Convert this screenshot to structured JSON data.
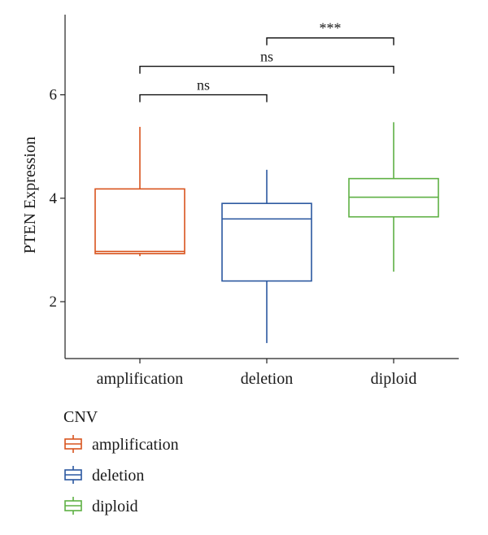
{
  "chart_data": {
    "type": "boxplot",
    "ylabel": "PTEN Expression",
    "xlabel": "",
    "ylim": [
      0.9,
      7.55
    ],
    "yticks": [
      "2",
      "4",
      "6"
    ],
    "categories": [
      "amplification",
      "deletion",
      "diploid"
    ],
    "boxes": [
      {
        "category": "amplification",
        "min": 2.88,
        "q1": 2.93,
        "median": 2.97,
        "q3": 4.18,
        "max": 5.38,
        "color": "#D9541E"
      },
      {
        "category": "deletion",
        "min": 1.2,
        "q1": 2.4,
        "median": 3.6,
        "q3": 3.9,
        "max": 4.55,
        "color": "#2B58A0"
      },
      {
        "category": "diploid",
        "min": 2.58,
        "q1": 3.64,
        "median": 4.02,
        "q3": 4.38,
        "max": 5.47,
        "color": "#5EB044"
      }
    ],
    "significance": [
      {
        "from": "amplification",
        "to": "deletion",
        "label": "ns",
        "y": 6.0
      },
      {
        "from": "amplification",
        "to": "diploid",
        "label": "ns",
        "y": 6.55
      },
      {
        "from": "deletion",
        "to": "diploid",
        "label": "***",
        "y": 7.1
      }
    ],
    "legend": {
      "title": "CNV",
      "items": [
        "amplification",
        "deletion",
        "diploid"
      ],
      "placement": "bottom-left"
    }
  }
}
